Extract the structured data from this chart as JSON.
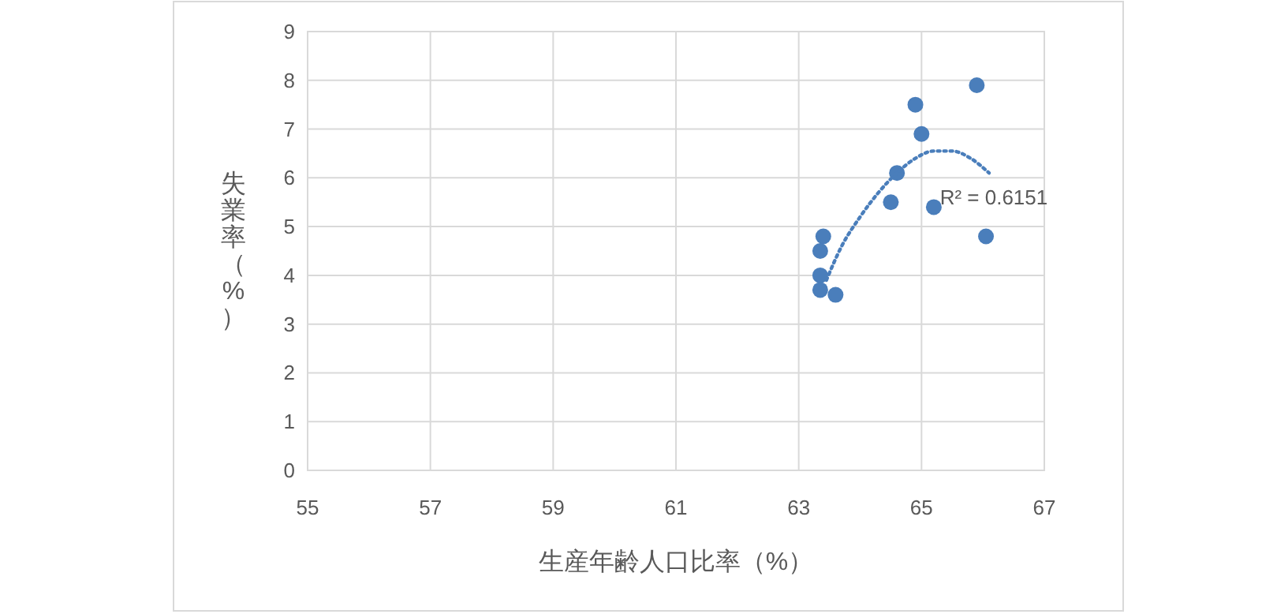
{
  "chart_data": {
    "type": "scatter",
    "xlabel": "生産年齢人口比率（%）",
    "ylabel": "失業率（%）",
    "xlim": [
      55,
      67
    ],
    "xticks": [
      55,
      57,
      59,
      61,
      63,
      65,
      67
    ],
    "ylim": [
      0,
      9
    ],
    "yticks": [
      0,
      1,
      2,
      3,
      4,
      5,
      6,
      7,
      8,
      9
    ],
    "grid": true,
    "marker": "circle",
    "series": [
      {
        "color": "#4a7ebb",
        "x": [
          63.4,
          63.35,
          63.35,
          63.35,
          63.6,
          64.6,
          64.5,
          64.9,
          65.0,
          65.2,
          65.9,
          66.05
        ],
        "values": [
          4.8,
          4.5,
          4.0,
          3.7,
          3.6,
          6.1,
          5.5,
          7.5,
          6.9,
          5.4,
          7.9,
          4.8
        ]
      },
      {
        "type": "line",
        "color": "#4a7ebb",
        "line_style": "dotted",
        "marker": "none",
        "x": [
          63.45,
          63.7,
          64.0,
          64.3,
          64.6,
          64.9,
          65.2,
          65.5,
          65.8,
          66.1
        ],
        "values": [
          3.9,
          4.6,
          5.2,
          5.7,
          6.1,
          6.4,
          6.55,
          6.55,
          6.4,
          6.1
        ]
      }
    ],
    "annotations": [
      {
        "text": "R² = 0.6151",
        "x": 65.3,
        "y": 5.45
      }
    ]
  }
}
